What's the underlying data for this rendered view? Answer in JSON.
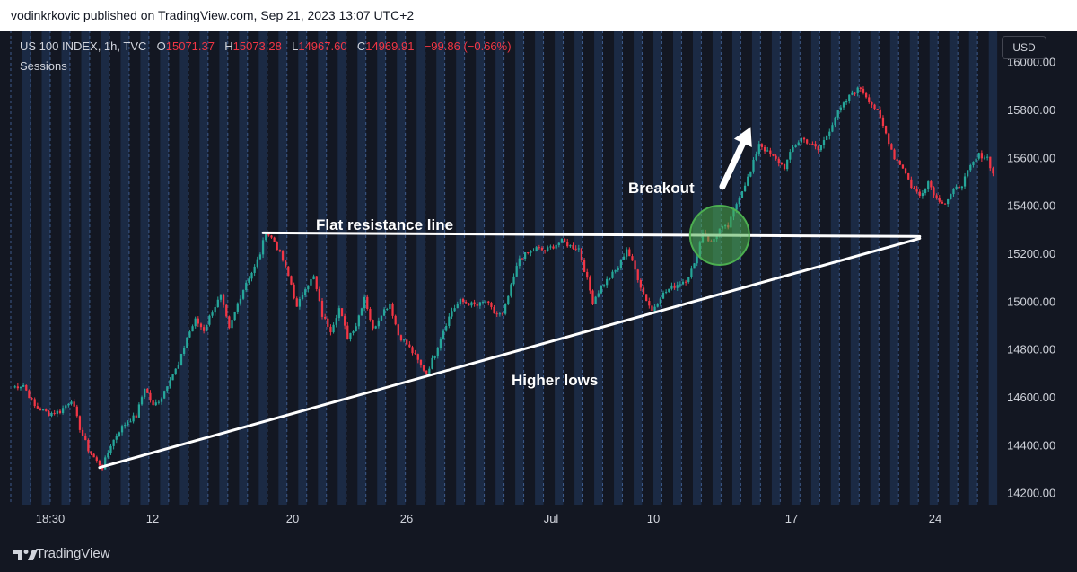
{
  "header": {
    "published_text": "vodinkrkovic published on TradingView.com, Sep 21, 2023 13:07 UTC+2"
  },
  "legend": {
    "symbol": "US 100 INDEX, 1h, TVC",
    "open_label": "O",
    "open": "15071.37",
    "high_label": "H",
    "high": "15073.28",
    "low_label": "L",
    "low": "14967.60",
    "close_label": "C",
    "close": "14969.91",
    "change": "−99.86 (−0.66%)",
    "sessions": "Sessions"
  },
  "currency_button": "USD",
  "footer": {
    "brand": "TradingView",
    "logo_icon": "tradingview-logo-icon"
  },
  "colors": {
    "background": "#131722",
    "session_band": "#1b2a44",
    "up": "#26a69a",
    "down": "#f23645",
    "text": "#d1d4dc",
    "annotation": "#ffffff"
  },
  "chart_data": {
    "type": "candlestick",
    "title": "",
    "xlabel": "",
    "ylabel": "",
    "ylim": [
      14150,
      16130
    ],
    "y_ticks": [
      "16000.00",
      "15800.00",
      "15600.00",
      "15400.00",
      "15200.00",
      "15000.00",
      "14800.00",
      "14600.00",
      "14400.00",
      "14200.00"
    ],
    "x_ticks": [
      "18:30",
      "12",
      "20",
      "26",
      "Jul",
      "10",
      "17",
      "24"
    ],
    "price_path": [
      [
        0,
        14640
      ],
      [
        4,
        14650
      ],
      [
        8,
        14560
      ],
      [
        13,
        14530
      ],
      [
        17,
        14540
      ],
      [
        21,
        14590
      ],
      [
        24,
        14470
      ],
      [
        27,
        14380
      ],
      [
        30,
        14330
      ],
      [
        32,
        14305
      ],
      [
        35,
        14400
      ],
      [
        38,
        14460
      ],
      [
        41,
        14500
      ],
      [
        44,
        14520
      ],
      [
        47,
        14640
      ],
      [
        50,
        14560
      ],
      [
        53,
        14600
      ],
      [
        56,
        14680
      ],
      [
        59,
        14730
      ],
      [
        62,
        14850
      ],
      [
        65,
        14920
      ],
      [
        68,
        14880
      ],
      [
        71,
        14960
      ],
      [
        74,
        15020
      ],
      [
        77,
        14880
      ],
      [
        80,
        14990
      ],
      [
        83,
        15080
      ],
      [
        86,
        15140
      ],
      [
        88,
        15200
      ],
      [
        90,
        15290
      ],
      [
        93,
        15250
      ],
      [
        96,
        15170
      ],
      [
        99,
        15070
      ],
      [
        101,
        14970
      ],
      [
        104,
        15060
      ],
      [
        107,
        15100
      ],
      [
        110,
        14940
      ],
      [
        113,
        14880
      ],
      [
        116,
        14970
      ],
      [
        119,
        14850
      ],
      [
        122,
        14900
      ],
      [
        125,
        15020
      ],
      [
        128,
        14880
      ],
      [
        131,
        14950
      ],
      [
        134,
        14990
      ],
      [
        137,
        14860
      ],
      [
        140,
        14820
      ],
      [
        143,
        14770
      ],
      [
        145,
        14730
      ],
      [
        147,
        14700
      ],
      [
        150,
        14780
      ],
      [
        153,
        14880
      ],
      [
        156,
        14960
      ],
      [
        159,
        15000
      ],
      [
        162,
        14990
      ],
      [
        165,
        14980
      ],
      [
        168,
        15000
      ],
      [
        171,
        14950
      ],
      [
        174,
        14940
      ],
      [
        180,
        15180
      ],
      [
        183,
        15200
      ],
      [
        186,
        15220
      ],
      [
        189,
        15210
      ],
      [
        192,
        15230
      ],
      [
        195,
        15250
      ],
      [
        198,
        15230
      ],
      [
        201,
        15220
      ],
      [
        206,
        15000
      ],
      [
        209,
        15060
      ],
      [
        212,
        15100
      ],
      [
        215,
        15140
      ],
      [
        218,
        15220
      ],
      [
        221,
        15130
      ],
      [
        224,
        15030
      ],
      [
        227,
        14960
      ],
      [
        230,
        15020
      ],
      [
        233,
        15050
      ],
      [
        236,
        15070
      ],
      [
        239,
        15090
      ],
      [
        242,
        15150
      ],
      [
        245,
        15290
      ],
      [
        248,
        15240
      ],
      [
        251,
        15300
      ],
      [
        254,
        15310
      ],
      [
        258,
        15440
      ],
      [
        262,
        15540
      ],
      [
        265,
        15660
      ],
      [
        268,
        15620
      ],
      [
        271,
        15590
      ],
      [
        274,
        15560
      ],
      [
        277,
        15640
      ],
      [
        280,
        15680
      ],
      [
        283,
        15660
      ],
      [
        286,
        15630
      ],
      [
        289,
        15690
      ],
      [
        292,
        15770
      ],
      [
        295,
        15820
      ],
      [
        298,
        15870
      ],
      [
        301,
        15890
      ],
      [
        304,
        15840
      ],
      [
        307,
        15790
      ],
      [
        310,
        15700
      ],
      [
        313,
        15600
      ],
      [
        316,
        15560
      ],
      [
        319,
        15480
      ],
      [
        322,
        15440
      ],
      [
        325,
        15500
      ],
      [
        328,
        15430
      ],
      [
        331,
        15410
      ],
      [
        334,
        15460
      ],
      [
        337,
        15490
      ],
      [
        340,
        15560
      ],
      [
        343,
        15610
      ],
      [
        346,
        15600
      ],
      [
        348,
        15530
      ]
    ],
    "annotations": [
      {
        "type": "line",
        "label": "Flat resistance line",
        "points": [
          [
            89,
            15285
          ],
          [
            322,
            15270
          ]
        ]
      },
      {
        "type": "line",
        "label": "Higher lows",
        "points": [
          [
            31,
            14305
          ],
          [
            322,
            15262
          ]
        ]
      },
      {
        "type": "arrow",
        "label": "Breakout",
        "points": [
          [
            252,
            15478
          ],
          [
            262,
            15728
          ]
        ]
      },
      {
        "type": "circle",
        "label": "",
        "center": [
          251,
          15275
        ]
      }
    ],
    "grid": false,
    "legend": "top-left"
  }
}
